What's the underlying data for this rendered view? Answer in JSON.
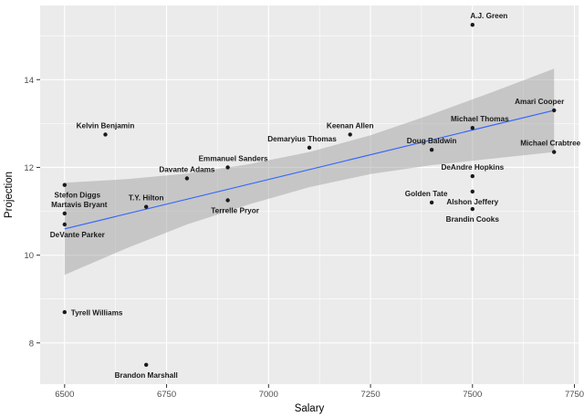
{
  "chart_data": {
    "type": "scatter",
    "title": "",
    "xlabel": "Salary",
    "ylabel": "Projection",
    "xlim": [
      6440,
      7760
    ],
    "ylim": [
      7.06,
      15.69
    ],
    "x_ticks": [
      6500,
      6750,
      7000,
      7250,
      7500,
      7750
    ],
    "y_ticks": [
      8,
      10,
      12,
      14
    ],
    "x_minor_ticks": [
      6625,
      6875,
      7125,
      7375,
      7625
    ],
    "y_minor_ticks": [
      7,
      9,
      11,
      13,
      15
    ],
    "grid": "major+minor",
    "legend": "none",
    "points": [
      {
        "label": "A.J. Green",
        "salary": 7500,
        "projection": 15.25,
        "label_side": "above",
        "dx": 18
      },
      {
        "label": "Amari Cooper",
        "salary": 7700,
        "projection": 13.3,
        "label_side": "above",
        "dx": -16
      },
      {
        "label": "Michael Thomas",
        "salary": 7500,
        "projection": 12.9,
        "label_side": "above",
        "dx": 8
      },
      {
        "label": "Kelvin Benjamin",
        "salary": 6600,
        "projection": 12.75,
        "label_side": "above",
        "dx": 0
      },
      {
        "label": "Keenan Allen",
        "salary": 7200,
        "projection": 12.75,
        "label_side": "above",
        "dx": 0
      },
      {
        "label": "Demaryius Thomas",
        "salary": 7100,
        "projection": 12.45,
        "label_side": "above",
        "dx": -8
      },
      {
        "label": "Doug Baldwin",
        "salary": 7400,
        "projection": 12.4,
        "label_side": "above",
        "dx": 0
      },
      {
        "label": "Michael Crabtree",
        "salary": 7700,
        "projection": 12.35,
        "label_side": "above",
        "dx": -4
      },
      {
        "label": "Emmanuel Sanders",
        "salary": 6900,
        "projection": 12.0,
        "label_side": "above",
        "dx": 6
      },
      {
        "label": "DeAndre Hopkins",
        "salary": 7500,
        "projection": 11.8,
        "label_side": "above",
        "dx": 0
      },
      {
        "label": "Davante Adams",
        "salary": 6800,
        "projection": 11.75,
        "label_side": "above",
        "dx": 0
      },
      {
        "label": "Stefon Diggs",
        "salary": 6500,
        "projection": 11.6,
        "label_side": "below",
        "dx": 14
      },
      {
        "label": "Alshon Jeffery",
        "salary": 7500,
        "projection": 11.45,
        "label_side": "below",
        "dx": 0
      },
      {
        "label": "Golden Tate",
        "salary": 7400,
        "projection": 11.2,
        "label_side": "above",
        "dx": -6
      },
      {
        "label": "Terrelle Pryor",
        "salary": 6900,
        "projection": 11.25,
        "label_side": "below",
        "dx": 8
      },
      {
        "label": "T.Y. Hilton",
        "salary": 6700,
        "projection": 11.1,
        "label_side": "above",
        "dx": 0
      },
      {
        "label": "Brandin Cooks",
        "salary": 7500,
        "projection": 11.05,
        "label_side": "below",
        "dx": 0
      },
      {
        "label": "Martavis Bryant",
        "salary": 6500,
        "projection": 10.95,
        "label_side": "above",
        "dx": 16
      },
      {
        "label": "DeVante Parker",
        "salary": 6500,
        "projection": 10.7,
        "label_side": "below",
        "dx": 14
      },
      {
        "label": "Tyrell Williams",
        "salary": 6500,
        "projection": 8.7,
        "label_side": "right",
        "dx": 0
      },
      {
        "label": "Brandon Marshall",
        "salary": 6700,
        "projection": 7.5,
        "label_side": "below",
        "dx": 0
      }
    ],
    "trend": {
      "type": "linear",
      "x": [
        6500,
        7700
      ],
      "y": [
        10.6,
        13.3
      ]
    },
    "ribbon": {
      "x": [
        6500,
        6650,
        6800,
        6950,
        7100,
        7250,
        7400,
        7550,
        7700
      ],
      "lower": [
        9.55,
        10.15,
        10.7,
        11.15,
        11.55,
        11.85,
        12.05,
        12.2,
        12.35
      ],
      "upper": [
        11.65,
        11.73,
        11.86,
        12.07,
        12.35,
        12.73,
        13.21,
        13.72,
        14.25
      ]
    },
    "colors": {
      "panel": "#EBEBEB",
      "grid_major": "#FFFFFF",
      "grid_minor": "#FFFFFF",
      "point": "#1A1A1A",
      "label": "#1A1A1A",
      "axis_text": "#4D4D4D",
      "axis_title": "#000000",
      "tick_mark": "#333333",
      "trend": "#3366FF",
      "ribbon": "#999999"
    }
  }
}
